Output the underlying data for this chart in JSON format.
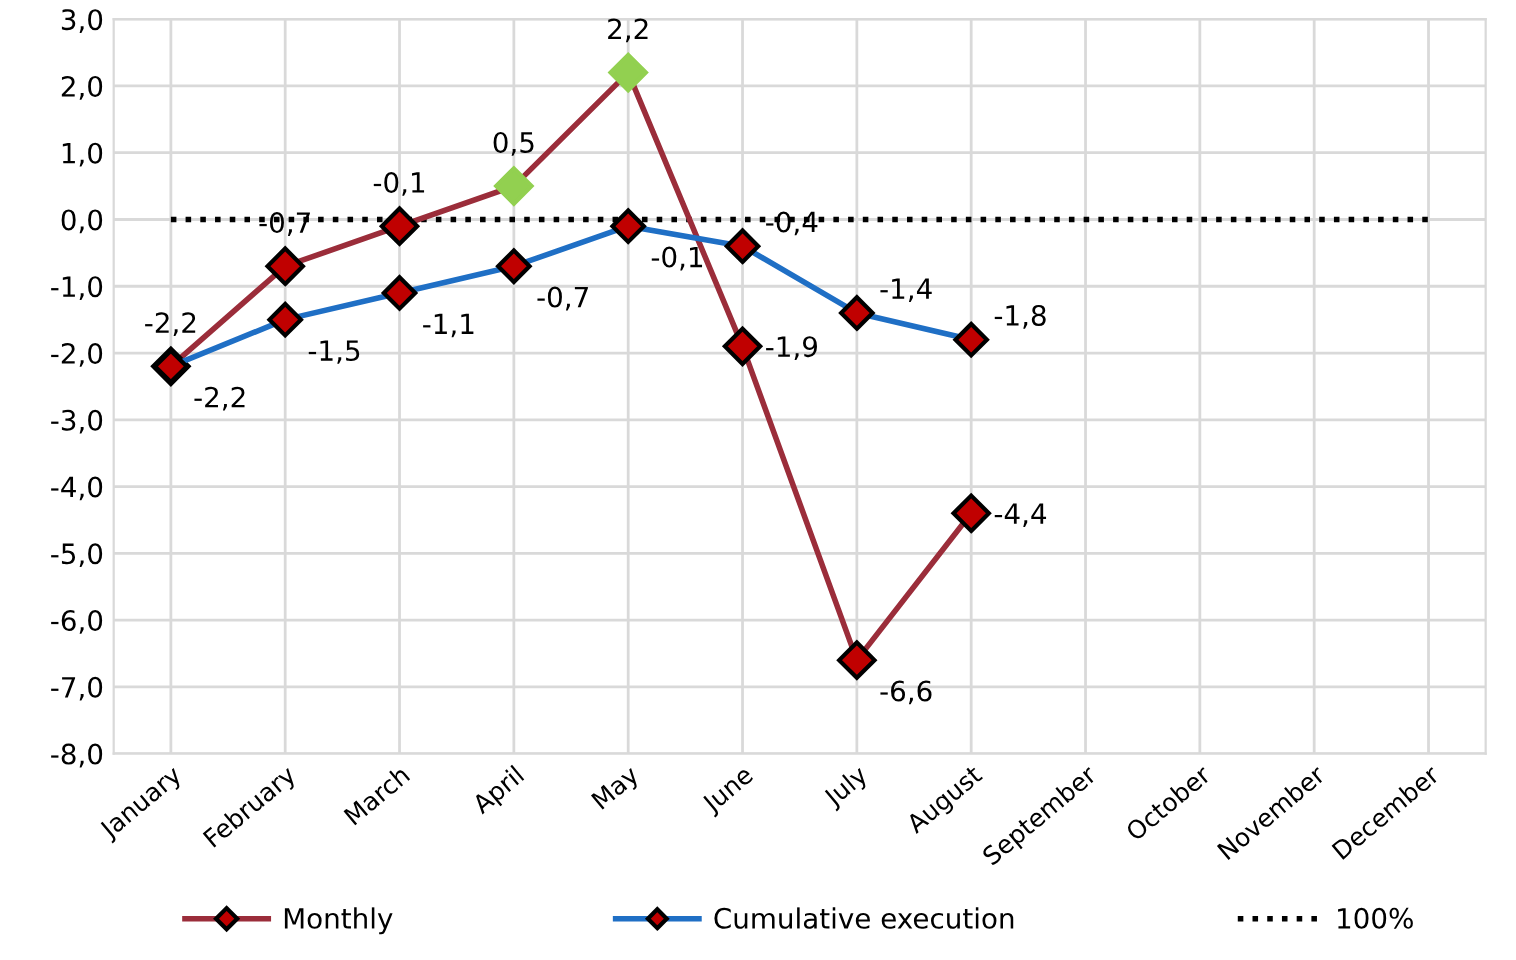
{
  "chart_data": {
    "type": "line",
    "categories": [
      "January",
      "February",
      "March",
      "April",
      "May",
      "June",
      "July",
      "August",
      "September",
      "October",
      "November",
      "December"
    ],
    "series": [
      {
        "name": "Monthly",
        "color": "#9b2d3a",
        "colors": [
          "#c00000",
          "#c00000",
          "#c00000",
          "#92d050",
          "#92d050",
          "#c00000",
          "#c00000",
          "#c00000",
          null,
          null,
          null,
          null
        ],
        "values": [
          -2.2,
          -0.7,
          -0.1,
          0.5,
          2.2,
          -1.9,
          -6.6,
          -4.4,
          null,
          null,
          null,
          null
        ],
        "value_labels": [
          "-2,2",
          "-0,7",
          "-0,1",
          "0,5",
          "2,2",
          "-1,9",
          "-6,6",
          "-4,4",
          null,
          null,
          null,
          null
        ]
      },
      {
        "name": "Cumulative execution",
        "color": "#1f6fc5",
        "colors": [
          "#c00000",
          "#c00000",
          "#c00000",
          "#c00000",
          "#c00000",
          "#c00000",
          "#c00000",
          "#c00000",
          null,
          null,
          null,
          null
        ],
        "values": [
          -2.2,
          -1.5,
          -1.1,
          -0.7,
          -0.1,
          -0.4,
          -1.4,
          -1.8,
          null,
          null,
          null,
          null
        ],
        "value_labels": [
          "-2,2",
          "-1,5",
          "-1,1",
          "-0,7",
          "-0,1",
          "-0,4",
          "-1,4",
          "-1,8",
          null,
          null,
          null,
          null
        ]
      },
      {
        "name": "100%",
        "color": "#000000",
        "line_style": "dotted",
        "marker": "none",
        "values": [
          0,
          0,
          0,
          0,
          0,
          0,
          0,
          0,
          0,
          0,
          0,
          0
        ]
      }
    ],
    "ylim": [
      -8,
      3
    ],
    "yticks": [
      {
        "value": 3,
        "label": "3,0"
      },
      {
        "value": 2,
        "label": "2,0"
      },
      {
        "value": 1,
        "label": "1,0"
      },
      {
        "value": 0,
        "label": "0,0"
      },
      {
        "value": -1,
        "label": "-1,0"
      },
      {
        "value": -2,
        "label": "-2,0"
      },
      {
        "value": -3,
        "label": "-3,0"
      },
      {
        "value": -4,
        "label": "-4,0"
      },
      {
        "value": -5,
        "label": "-5,0"
      },
      {
        "value": -6,
        "label": "-6,0"
      },
      {
        "value": -7,
        "label": "-7,0"
      },
      {
        "value": -8,
        "label": "-8,0"
      }
    ],
    "grid": true,
    "legend": "bottom",
    "marker": "diamond",
    "line_style": "solid"
  }
}
